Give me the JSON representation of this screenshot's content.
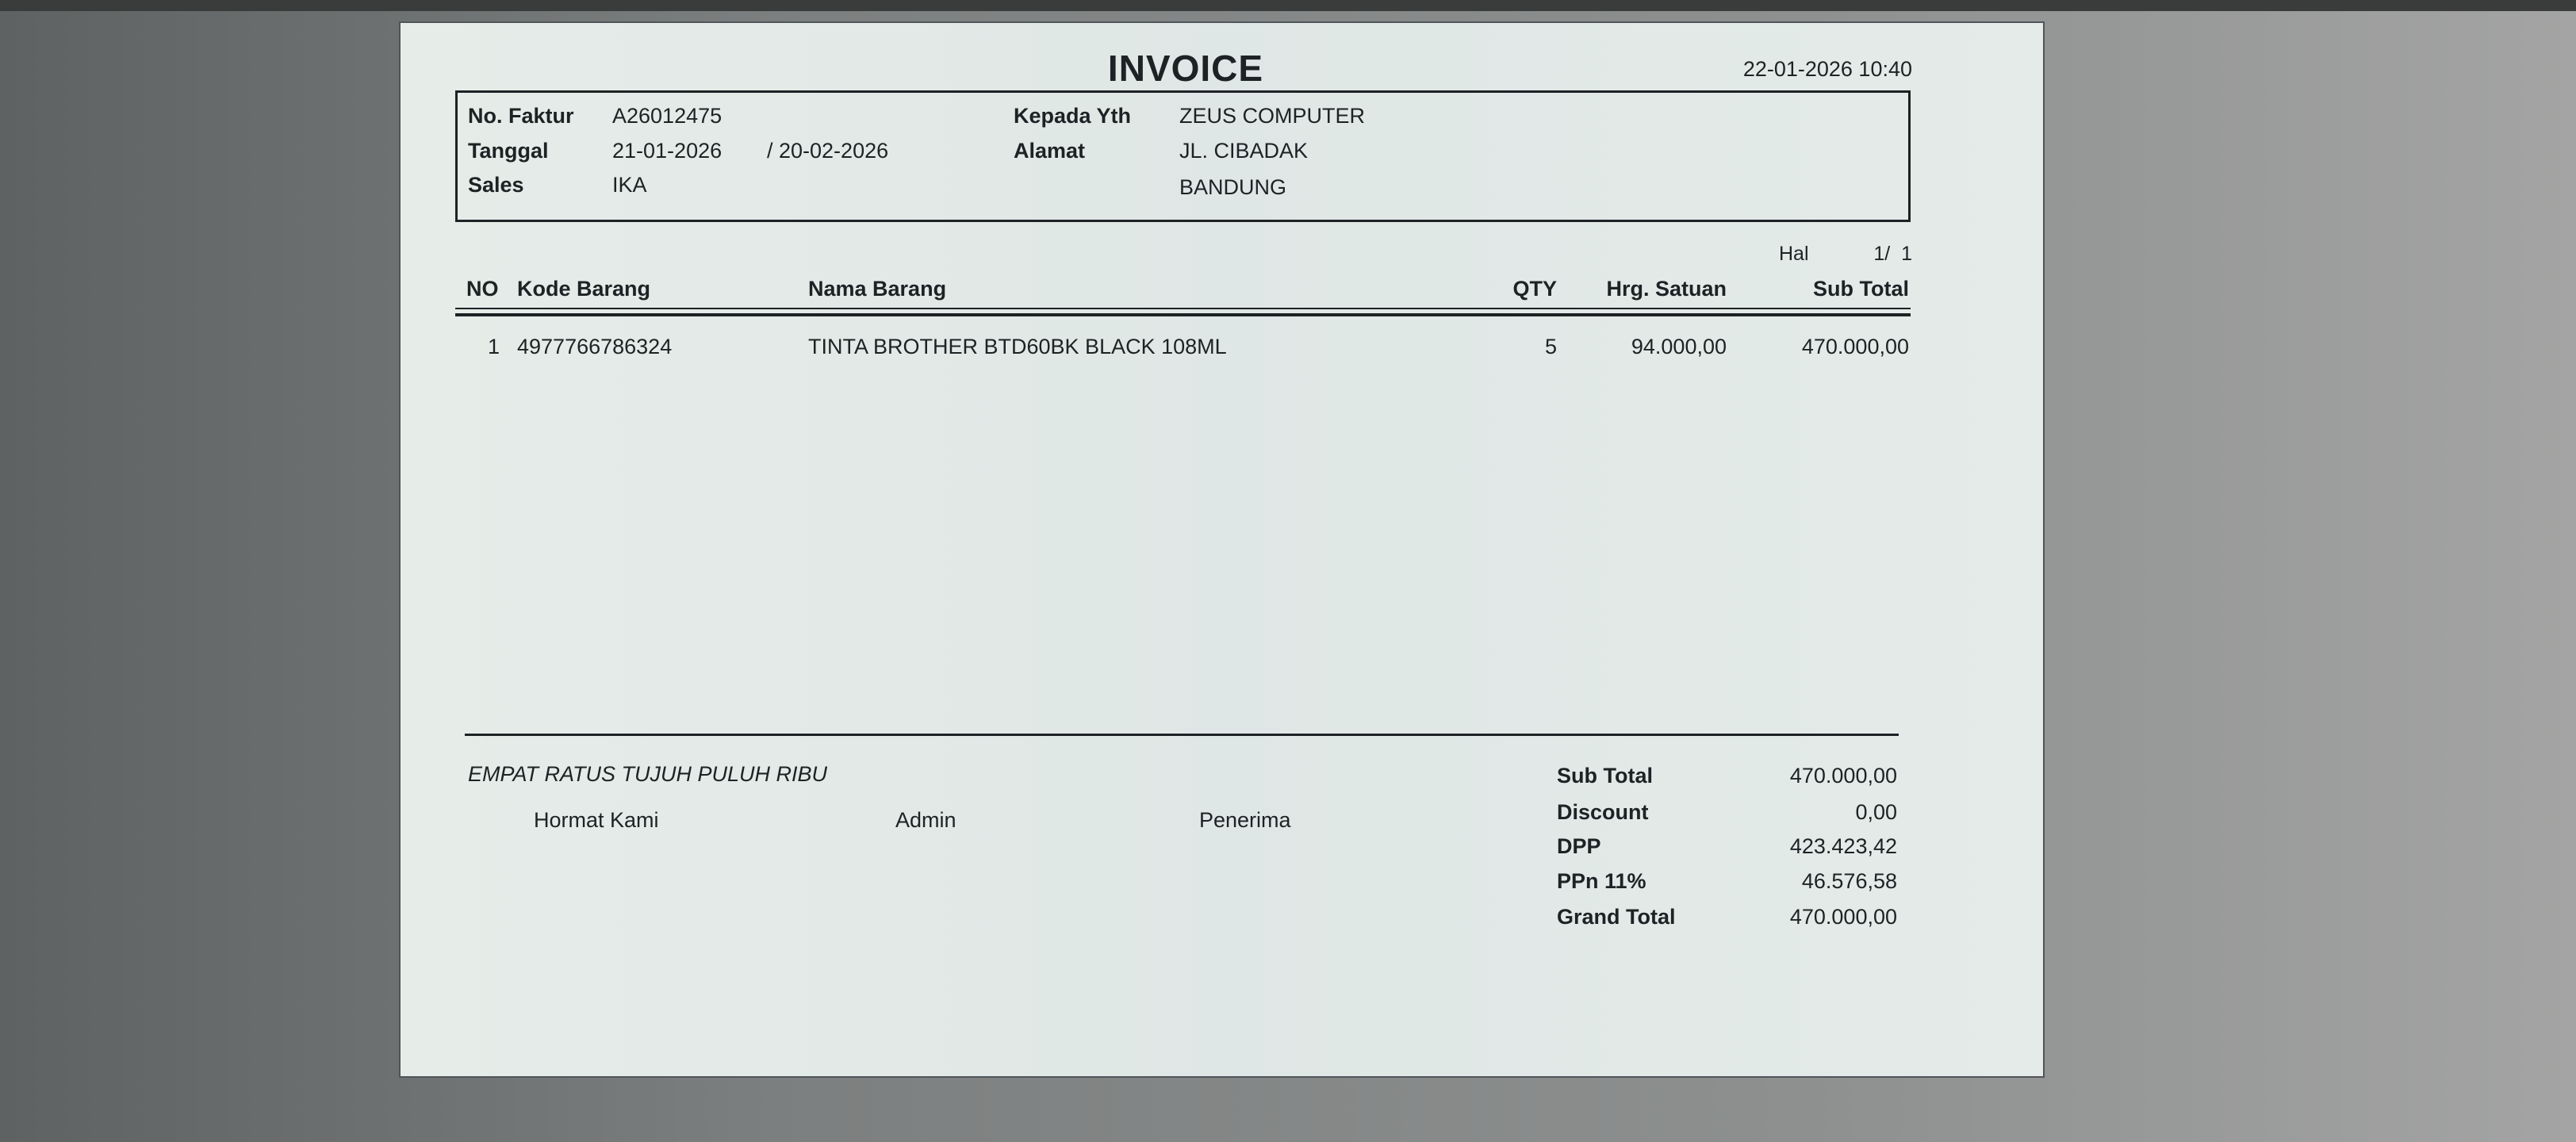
{
  "invoice": {
    "title": "INVOICE",
    "printed_at": "22-01-2026 10:40",
    "no_faktur_label": "No. Faktur",
    "no_faktur": "A26012475",
    "tanggal_label": "Tanggal",
    "tanggal": "21-01-2026",
    "jatuh_tempo": "/ 20-02-2026",
    "sales_label": "Sales",
    "sales": "IKA",
    "kepada_label": "Kepada Yth",
    "kepada": "ZEUS COMPUTER",
    "alamat_label": "Alamat",
    "alamat_1": "JL. CIBADAK",
    "alamat_2": "BANDUNG",
    "hal_label": "Hal",
    "hal": "1/  1"
  },
  "table": {
    "headers": {
      "no": "NO",
      "kode": "Kode Barang",
      "nama": "Nama Barang",
      "qty": "QTY",
      "harga": "Hrg. Satuan",
      "subtotal": "Sub Total"
    },
    "rows": [
      {
        "no": "1",
        "kode": "4977766786324",
        "nama": "TINTA BROTHER BTD60BK BLACK 108ML",
        "qty": "5",
        "harga": "94.000,00",
        "subtotal": "470.000,00"
      }
    ]
  },
  "footer": {
    "terbilang": "EMPAT RATUS TUJUH PULUH RIBU",
    "hormat_kami": "Hormat Kami",
    "admin": "Admin",
    "penerima": "Penerima"
  },
  "totals": [
    {
      "label": "Sub Total",
      "value": "470.000,00"
    },
    {
      "label": "Discount",
      "value": "0,00"
    },
    {
      "label": "DPP",
      "value": "423.423,42"
    },
    {
      "label": "PPn 11%",
      "value": "46.576,58"
    },
    {
      "label": "Grand Total",
      "value": "470.000,00"
    }
  ]
}
